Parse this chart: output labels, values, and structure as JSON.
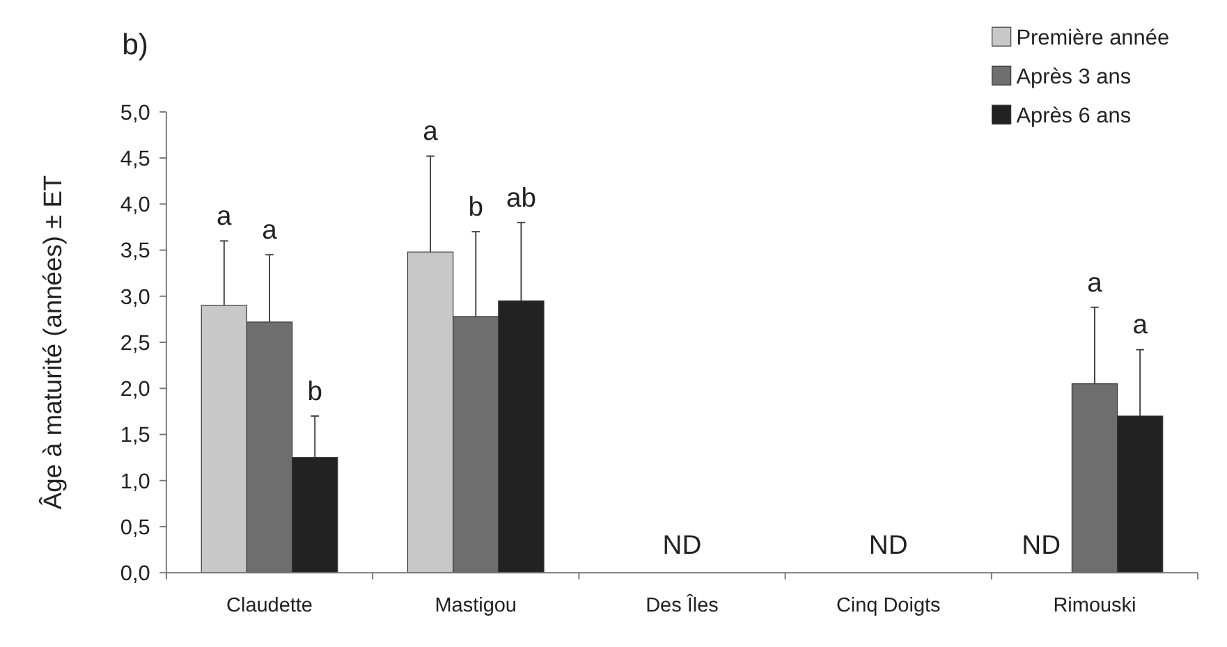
{
  "chart_data": {
    "type": "bar",
    "title": "b)",
    "ylabel": "Âge à maturité (années) ± ET",
    "categories": [
      "Claudette",
      "Mastigou",
      "Des Îles",
      "Cinq Doigts",
      "Rimouski"
    ],
    "series": [
      {
        "name": "Première année",
        "color": "#c8c8c8",
        "values": [
          2.9,
          3.48,
          null,
          null,
          null
        ],
        "errors": [
          [
            2.9,
            3.6
          ],
          [
            3.48,
            4.52
          ],
          null,
          null,
          null
        ]
      },
      {
        "name": "Après 3 ans",
        "color": "#6e6e6e",
        "values": [
          2.72,
          2.78,
          null,
          null,
          2.05
        ],
        "errors": [
          [
            2.72,
            3.45
          ],
          [
            2.78,
            3.7
          ],
          null,
          null,
          [
            2.05,
            2.88
          ]
        ]
      },
      {
        "name": "Après 6 ans",
        "color": "#222222",
        "values": [
          1.25,
          2.95,
          null,
          null,
          1.7
        ],
        "errors": [
          [
            1.25,
            1.7
          ],
          [
            2.95,
            3.8
          ],
          null,
          null,
          [
            1.7,
            2.42
          ]
        ]
      }
    ],
    "ylim": [
      0,
      5
    ],
    "yticks": [
      {
        "value": 0,
        "label": "0,0"
      },
      {
        "value": 0.5,
        "label": "0,5"
      },
      {
        "value": 1,
        "label": "1,0"
      },
      {
        "value": 1.5,
        "label": "1,5"
      },
      {
        "value": 2,
        "label": "2,0"
      },
      {
        "value": 2.5,
        "label": "2,5"
      },
      {
        "value": 3,
        "label": "3,0"
      },
      {
        "value": 3.5,
        "label": "3,5"
      },
      {
        "value": 4,
        "label": "4,0"
      },
      {
        "value": 4.5,
        "label": "4,5"
      },
      {
        "value": 5,
        "label": "5,0"
      }
    ],
    "legend": "top right",
    "annotations": [
      "a",
      "a",
      "b",
      "a",
      "b",
      "ab",
      "ND",
      "ND",
      "ND",
      "a",
      "a"
    ]
  }
}
